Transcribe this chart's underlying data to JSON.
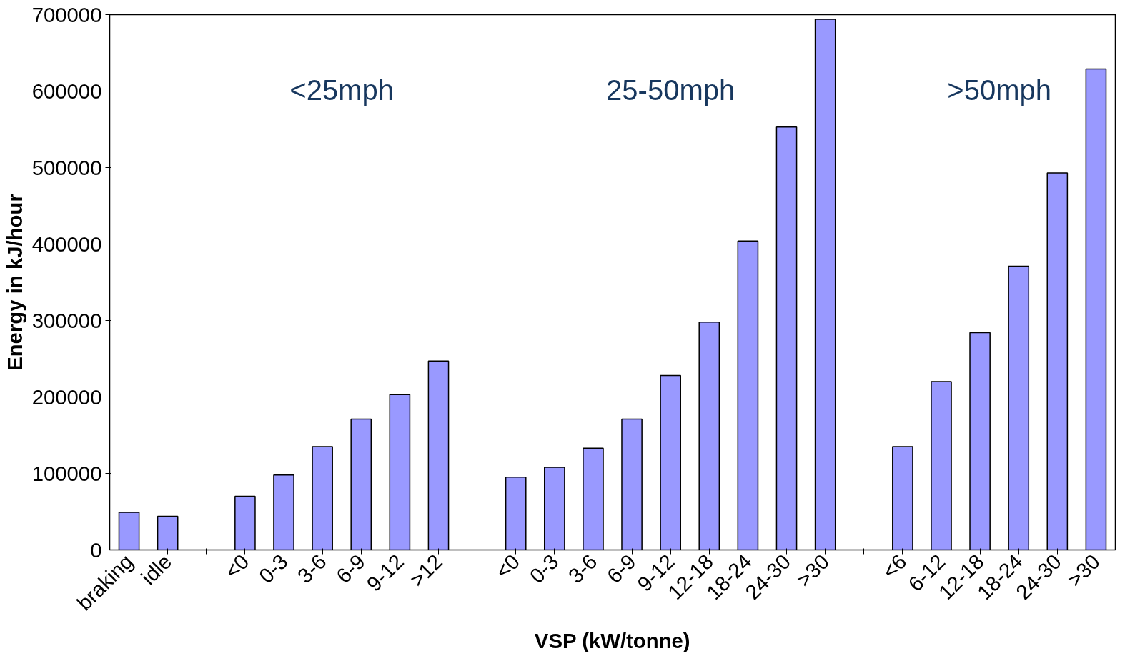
{
  "chart_data": {
    "type": "bar",
    "xlabel": "VSP (kW/tonne)",
    "ylabel": "Energy in kJ/hour",
    "categories": [
      "braking",
      "idle",
      null,
      "<0",
      "0-3",
      "3-6",
      "6-9",
      "9-12",
      ">12",
      null,
      "<0",
      "0-3",
      "3-6",
      "6-9",
      "9-12",
      "12-18",
      "18-24",
      "24-30",
      ">30",
      null,
      "<6",
      "6-12",
      "12-18",
      "18-24",
      "24-30",
      ">30"
    ],
    "values": [
      49000,
      44000,
      null,
      70000,
      98000,
      135000,
      171000,
      203000,
      247000,
      null,
      95000,
      108000,
      133000,
      171000,
      228000,
      298000,
      404000,
      553000,
      694000,
      null,
      135000,
      220000,
      284000,
      371000,
      493000,
      629000
    ],
    "color": "#9999ff",
    "ylim": [
      0,
      700000
    ],
    "yticks": [
      0,
      100000,
      200000,
      300000,
      400000,
      500000,
      600000,
      700000
    ],
    "annotations": [
      "<25mph",
      "25-50mph",
      ">50mph"
    ],
    "grid": false
  }
}
